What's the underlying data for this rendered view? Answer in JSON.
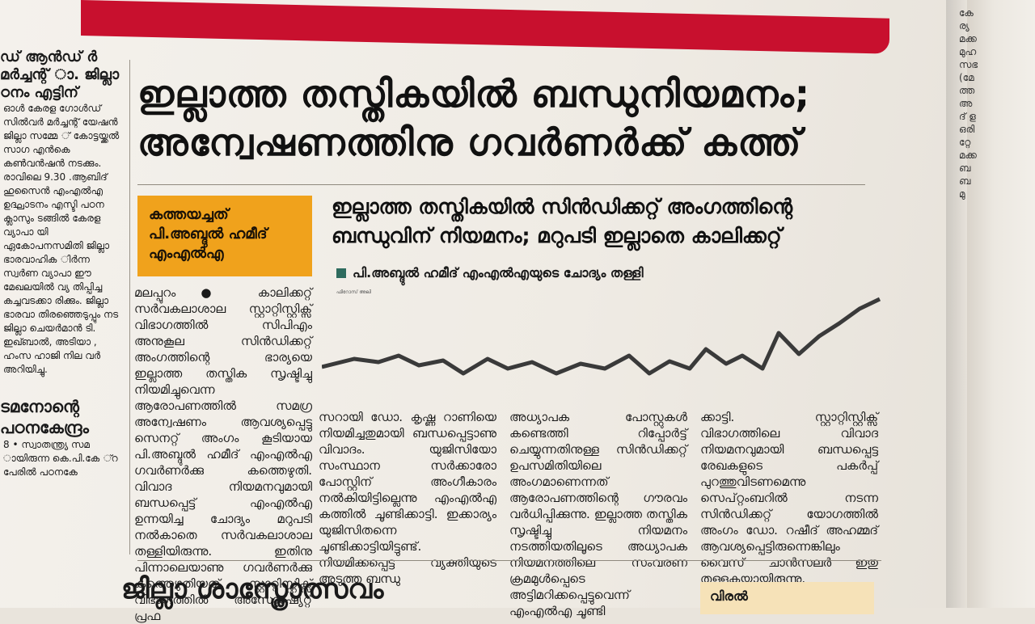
{
  "left_column": {
    "heading": "ഡ് ആൻഡ് ർ മർച്ചന്റ് ാ. ജില്ലാ ഠനം എട്ടിന്",
    "paragraphs": [
      "ഓൾ കേരള ഗോൾഡ് സിൽവർ മർച്ചന്റ് യേഷൻ ജില്ലാ സമ്മേ ് കോട്ടയ്ക്കൽ സാഗ എൻകെ കൺവൻഷൻ നടക്കും. രാവിലെ 9.30 .ആബിദ് ഹുസൈൻ എംഎൽഎ ഉദ്ഘാടനം എസ്ടി പഠന ക്ലാസും ടങ്ങിൽ കേരള വ്യാപാ യി ഏകോപനസമിതി ജില്ലാ ഭാരവാഹിക ിർന്ന സ്വർണ വ്യാപാ ഈ മേഖലയിൽ വ്യ തിപ്പിച്ച കച്ചവടക്കാ രിക്കും. ജില്ലാ ഭാരവാ തിരഞ്ഞെടുപ്പും നട ജില്ലാ ചെയർമാൻ ടി. ഇഖ്ബാൽ, അടിയാ , ഹംസ ഹാജി നില വർ അറിയിച്ചു."
    ],
    "heading2": "ടമനോന്റെ പഠനകേന്ദ്രം",
    "paragraph2": "8 • സ്വാതന്ത്ര്യ സമ ായിരുന്ന കെ.പി.കേ ്റ പേരിൽ പഠനകേ"
  },
  "headline": "ഇല്ലാത്ത തസ്തികയിൽ ബന്ധുനിയമനം; അന്വേഷണത്തിനു ഗവർണർക്ക് കത്ത്",
  "kicker": "കത്തയച്ചത് പി.അബ്ദുൽ ഹമീദ് എംഎൽഎ",
  "subhead": "ഇല്ലാത്ത തസ്തികയിൽ സിൻഡിക്കറ്റ് അംഗത്തിന്റെ ബന്ധുവിന് നിയമനം; മറുപടി ഇല്ലാതെ കാലിക്കറ്റ്",
  "byline": "പി.അബ്ദുൽ ഹമീദ് എംഎൽഎയുടെ ചോദ്യം തള്ളി",
  "strip_author": "ഫിറോസ് അലി",
  "col1": "മലപ്പുറം ● കാലിക്കറ്റ് സർവകലാശാല സ്റ്റാറ്റിസ്റ്റിക്സ് വിഭാഗത്തിൽ സിപിഎം അനുകൂല സിൻഡിക്കറ്റ് അംഗത്തിന്റെ ഭാര്യയെ ഇല്ലാത്ത തസ്തിക സൃഷ്ടിച്ചു നിയമിച്ചുവെന്ന ആരോപണത്തിൽ സമഗ്ര അന്വേഷണം ആവശ്യപ്പെട്ടു സെനറ്റ് അംഗം കൂടിയായ പി.അബ്ദുൽ ഹമീദ് എംഎൽഎ ഗവർണർക്കു കത്തെഴുതി. വിവാദ നിയമനവുമായി ബന്ധപ്പെട്ട് എംഎൽഎ ഉന്നയിച്ച ചോദ്യം മറുപടി നൽകാതെ സർവകലാശാല തള്ളിയിരുന്നു. ഇതിനു പിന്നാലെയാണു ഗവർണർക്കു കത്തെഴുതിയത്. സ്റ്റാറ്റിസ്റ്റിക്സ് വിഭാഗത്തിൽ അസോഷ്യേറ്റ് പ്രഫ",
  "col2": "സറായി ഡോ. കൃഷ്ണ റാണിയെ നിയമിച്ചതുമായി ബന്ധപ്പെട്ടാണു വിവാദം. യുജിസിയോ സംസ്ഥാന സർക്കാരോ പോസ്റ്റിന് അംഗീകാരം നൽകിയിട്ടില്ലെന്നു എംഎൽഎ കത്തിൽ ചൂണ്ടിക്കാട്ടി. ഇക്കാര്യം യുജിസിതന്നെ ചൂണ്ടിക്കാട്ടിയിട്ടുണ്ട്. നിയമിക്കപ്പെട്ട വ്യക്തിയുടെ അടുത്ത ബന്ധു",
  "col3": "അധ്യാപക പോസ്റ്റുകൾ കണ്ടെത്തി റിപ്പോർട്ട് ചെയ്യുന്നതിനുള്ള സിൻഡിക്കറ്റ് ഉപസമിതിയിലെ അംഗമാണെന്നത് ആരോപണത്തിന്റെ ഗൗരവം വർധിപ്പിക്കുന്നു. ഇല്ലാത്ത തസ്തിക സൃഷ്ടിച്ചു നിയമനം നടത്തിയതിലൂടെ അധ്യാപക നിയമനത്തിലെ സംവരണ ക്രമമുൾപ്പെടെ അട്ടിമറിക്കപ്പെട്ടുവെന്ന് എംഎൽഎ ചൂണ്ടി",
  "col4": "ക്കാട്ടി. സ്റ്റാറ്റിസ്റ്റിക്സ് വിഭാഗത്തിലെ വിവാദ നിയമനവുമായി ബന്ധപ്പെട്ട രേഖകളുടെ പകർപ്പ് പുറത്തുവിടണമെന്നു സെപ്റ്റംബറിൽ നടന്ന സിൻഡിക്കറ്റ് യോഗത്തിൽ അംഗം ഡോ. റഷീദ് അഹമ്മദ് ആവശ്യപ്പെട്ടിരുന്നെങ്കിലും വൈസ് ചാൻസലർ ഇതു തള്ളുകയായിരുന്നു.",
  "bottom_headline": "ജില്ലാ ശാസ്ത്രോത്സവം",
  "bottom_box": "വിരൽ",
  "right_fragments": [
    "കേ",
    "ര്യ",
    "മക്ക",
    "മുഹ",
    "സഭ",
    "(മേ",
    "ത്ത",
    "അ",
    "ദ് ള",
    "ഒരി",
    "റ്റേ",
    "മക്ക",
    "ബ",
    "ബ",
    "മു"
  ],
  "colors": {
    "accent_red": "#c8102e",
    "kicker_bg": "#f0a21c",
    "byline_square": "#2e6b5e"
  }
}
